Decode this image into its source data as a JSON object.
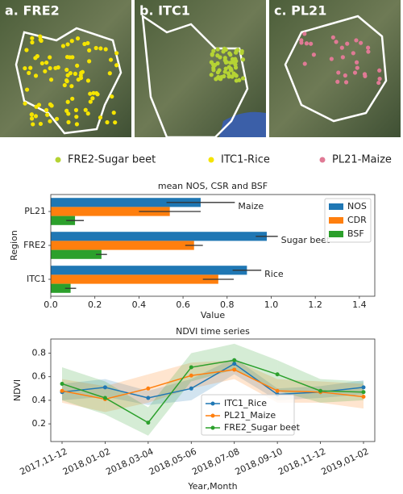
{
  "panels": [
    {
      "label": "a. FRE2"
    },
    {
      "label": "b. ITC1"
    },
    {
      "label": "c. PL21"
    }
  ],
  "legend": [
    {
      "label": "FRE2-Sugar beet",
      "color": "#b5d334"
    },
    {
      "label": "ITC1-Rice",
      "color": "#f5e400"
    },
    {
      "label": "PL21-Maize",
      "color": "#e07a95"
    }
  ],
  "chart_data": [
    {
      "type": "bar",
      "orientation": "horizontal",
      "title": "mean NOS, CSR and BSF",
      "x_label": "Value",
      "y_label": "Region",
      "categories": [
        "PL21",
        "FRE2",
        "ITC1"
      ],
      "series": [
        {
          "name": "NOS",
          "color": "#1f77b4",
          "values": [
            0.68,
            0.98,
            0.89
          ],
          "errors": [
            0.155,
            0.05,
            0.065
          ]
        },
        {
          "name": "CDR",
          "color": "#ff7f0e",
          "values": [
            0.54,
            0.65,
            0.76
          ],
          "errors": [
            0.14,
            0.04,
            0.07
          ]
        },
        {
          "name": "BSF",
          "color": "#2ca02c",
          "values": [
            0.11,
            0.23,
            0.09
          ],
          "errors": [
            0.04,
            0.025,
            0.025
          ]
        }
      ],
      "annotations": [
        "Maize",
        "Sugar beet",
        "Rice"
      ],
      "xlim": [
        0,
        1.47
      ],
      "xticks": [
        {
          "value": 0,
          "label": "0.0"
        },
        0.2,
        0.4,
        0.6,
        0.8,
        {
          "value": 1,
          "label": "1.0"
        },
        1.2,
        1.4
      ],
      "legend_position": "upper right"
    },
    {
      "type": "line",
      "title": "NDVI time series",
      "x_label": "Year,Month",
      "y_label": "NDVI",
      "categories": [
        "2017,11-12",
        "2018,01-02",
        "2018,03-04",
        "2018,05-06",
        "2018,07-08",
        "2018,09-10",
        "2018,11-12",
        "2019,01-02"
      ],
      "series": [
        {
          "name": "ITC1_Rice",
          "color": "#1f77b4",
          "values": [
            0.47,
            0.51,
            0.42,
            0.5,
            0.71,
            0.45,
            0.47,
            0.51
          ],
          "lower": [
            0.4,
            0.43,
            0.36,
            0.4,
            0.62,
            0.4,
            0.42,
            0.45
          ],
          "upper": [
            0.54,
            0.58,
            0.48,
            0.58,
            0.76,
            0.5,
            0.52,
            0.57
          ]
        },
        {
          "name": "PL21_Maize",
          "color": "#ff7f0e",
          "values": [
            0.48,
            0.41,
            0.5,
            0.61,
            0.66,
            0.48,
            0.47,
            0.43
          ],
          "lower": [
            0.38,
            0.3,
            0.38,
            0.5,
            0.58,
            0.38,
            0.38,
            0.33
          ],
          "upper": [
            0.58,
            0.52,
            0.62,
            0.72,
            0.74,
            0.58,
            0.56,
            0.54
          ]
        },
        {
          "name": "FRE2_Sugar beet",
          "color": "#2ca02c",
          "values": [
            0.54,
            0.42,
            0.21,
            0.68,
            0.74,
            0.62,
            0.48,
            0.47
          ],
          "lower": [
            0.4,
            0.28,
            0.1,
            0.56,
            0.66,
            0.48,
            0.38,
            0.4
          ],
          "upper": [
            0.68,
            0.56,
            0.34,
            0.8,
            0.88,
            0.74,
            0.58,
            0.56
          ]
        }
      ],
      "ylim": [
        0.05,
        0.92
      ],
      "yticks": [
        0.2,
        0.4,
        0.6,
        0.8
      ],
      "legend_position": "lower center"
    }
  ]
}
